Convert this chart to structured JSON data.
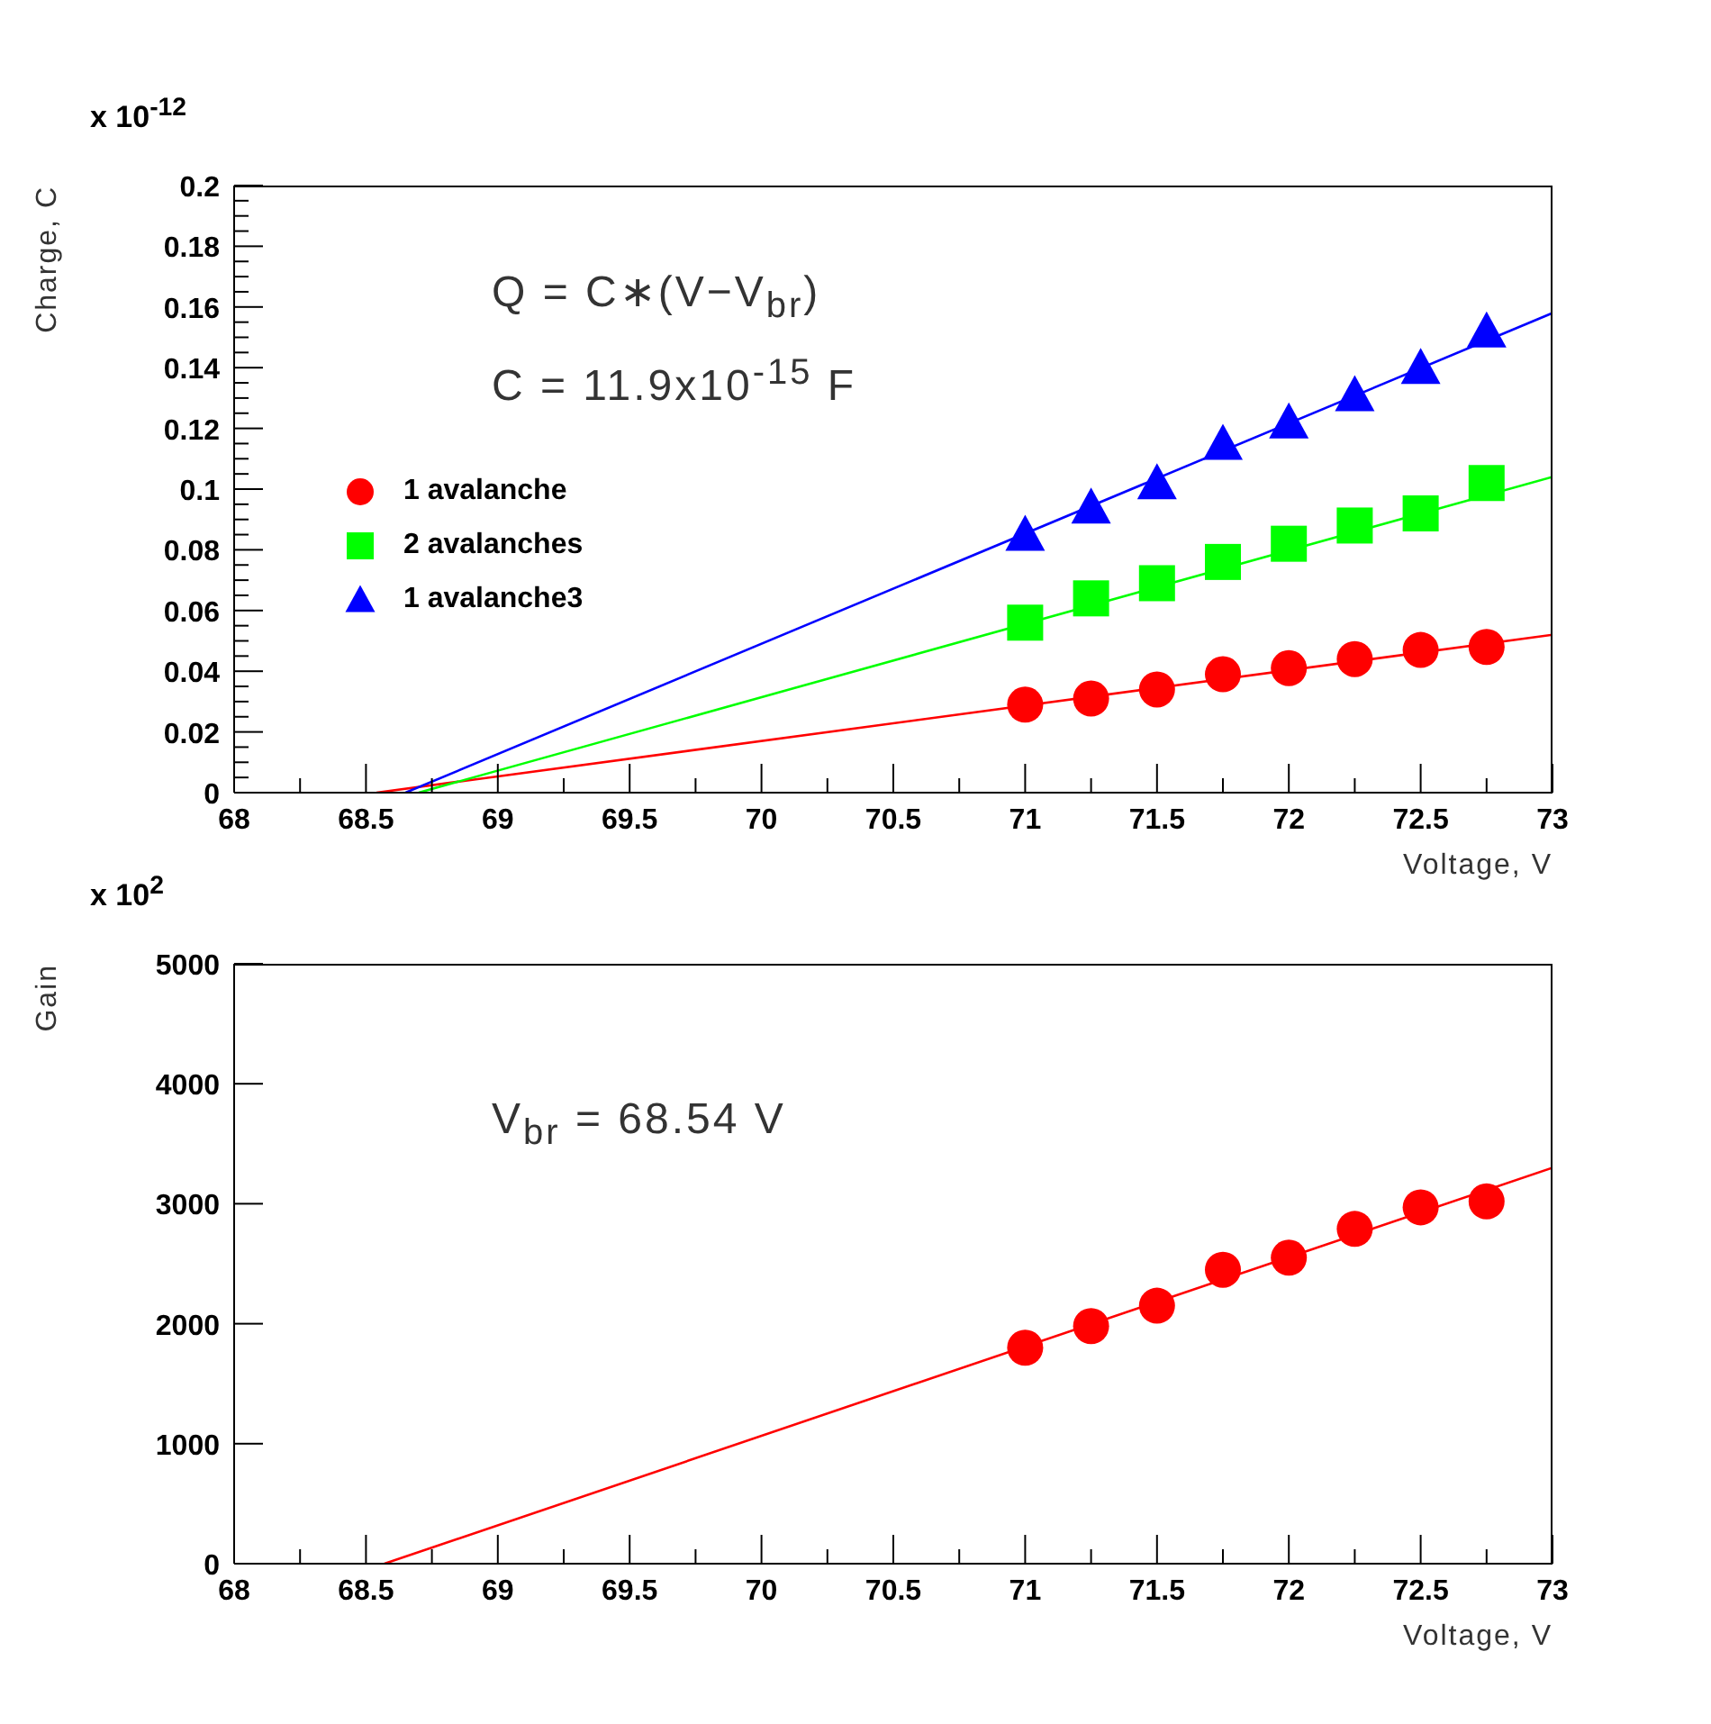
{
  "chart_data": [
    {
      "type": "scatter",
      "xlabel": "Voltage, V",
      "ylabel": "Charge, C",
      "annotations": [
        "x 10$^{-12}$",
        "Q = C∗(V−V$_{br}$)",
        "C = 11.9x10$^{-15}$ F"
      ],
      "xlim": [
        68,
        73
      ],
      "xticks": [
        68,
        {
          "value": 68.25,
          "label": null
        },
        68.5,
        {
          "value": 68.75,
          "label": null
        },
        69,
        {
          "value": 69.25,
          "label": null
        },
        69.5,
        {
          "value": 69.75,
          "label": null
        },
        70,
        {
          "value": 70.25,
          "label": null
        },
        70.5,
        {
          "value": 70.75,
          "label": null
        },
        71,
        {
          "value": 71.25,
          "label": null
        },
        71.5,
        {
          "value": 71.75,
          "label": null
        },
        72,
        {
          "value": 72.25,
          "label": null
        },
        72.5,
        {
          "value": 72.75,
          "label": null
        },
        73
      ],
      "ylim": [
        0,
        0.2
      ],
      "yticks": [
        0,
        {
          "value": 0.005,
          "label": null
        },
        {
          "value": 0.01,
          "label": null
        },
        {
          "value": 0.015,
          "label": null
        },
        0.02,
        {
          "value": 0.025,
          "label": null
        },
        {
          "value": 0.03,
          "label": null
        },
        {
          "value": 0.035,
          "label": null
        },
        0.04,
        {
          "value": 0.045,
          "label": null
        },
        {
          "value": 0.05,
          "label": null
        },
        {
          "value": 0.055,
          "label": null
        },
        0.06,
        {
          "value": 0.065,
          "label": null
        },
        {
          "value": 0.07,
          "label": null
        },
        {
          "value": 0.075,
          "label": null
        },
        0.08,
        {
          "value": 0.085,
          "label": null
        },
        {
          "value": 0.09,
          "label": null
        },
        {
          "value": 0.095,
          "label": null
        },
        0.1,
        {
          "value": 0.105,
          "label": null
        },
        {
          "value": 0.11,
          "label": null
        },
        {
          "value": 0.115,
          "label": null
        },
        0.12,
        {
          "value": 0.125,
          "label": null
        },
        {
          "value": 0.13,
          "label": null
        },
        {
          "value": 0.135,
          "label": null
        },
        0.14,
        {
          "value": 0.145,
          "label": null
        },
        {
          "value": 0.15,
          "label": null
        },
        {
          "value": 0.155,
          "label": null
        },
        0.16,
        {
          "value": 0.165,
          "label": null
        },
        {
          "value": 0.17,
          "label": null
        },
        {
          "value": 0.175,
          "label": null
        },
        0.18,
        {
          "value": 0.185,
          "label": null
        },
        {
          "value": 0.19,
          "label": null
        },
        {
          "value": 0.195,
          "label": null
        },
        0.2
      ],
      "legend": "left",
      "grid": false,
      "series": [
        {
          "name": "1 avalanche",
          "color": "#ff0000",
          "marker": "circle",
          "x": [
            71,
            71.25,
            71.5,
            71.75,
            72,
            72.25,
            72.5,
            72.75
          ],
          "values": [
            0.029,
            0.031,
            0.034,
            0.039,
            0.041,
            0.044,
            0.047,
            0.048
          ]
        },
        {
          "name": "2 avalanches",
          "color": "#00ff00",
          "marker": "square",
          "x": [
            71,
            71.25,
            71.5,
            71.75,
            72,
            72.25,
            72.5,
            72.75
          ],
          "values": [
            0.056,
            0.064,
            0.069,
            0.076,
            0.082,
            0.088,
            0.092,
            0.102
          ]
        },
        {
          "name": "1 avalanche3",
          "color": "#0000ff",
          "marker": "triangle",
          "x": [
            71,
            71.25,
            71.5,
            71.75,
            72,
            72.25,
            72.5,
            72.75
          ],
          "values": [
            0.085,
            0.094,
            0.102,
            0.115,
            0.122,
            0.131,
            0.14,
            0.152
          ]
        },
        {
          "type": "line",
          "color": "#ff0000",
          "x": [
            68.54,
            73
          ],
          "values": [
            0,
            0.052
          ]
        },
        {
          "type": "line",
          "color": "#00ff00",
          "x": [
            68.7,
            73
          ],
          "values": [
            0,
            0.104
          ]
        },
        {
          "type": "line",
          "color": "#0000ff",
          "x": [
            68.65,
            73
          ],
          "values": [
            0,
            0.158
          ]
        }
      ]
    },
    {
      "type": "scatter",
      "xlabel": "Voltage, V",
      "ylabel": "Gain",
      "annotations": [
        "x 10$^{2}$",
        "V$_{br}$ = 68.54 V"
      ],
      "xlim": [
        68,
        73
      ],
      "xticks": [
        68,
        {
          "value": 68.25,
          "label": null
        },
        68.5,
        {
          "value": 68.75,
          "label": null
        },
        69,
        {
          "value": 69.25,
          "label": null
        },
        69.5,
        {
          "value": 69.75,
          "label": null
        },
        70,
        {
          "value": 70.25,
          "label": null
        },
        70.5,
        {
          "value": 70.75,
          "label": null
        },
        71,
        {
          "value": 71.25,
          "label": null
        },
        71.5,
        {
          "value": 71.75,
          "label": null
        },
        72,
        {
          "value": 72.25,
          "label": null
        },
        72.5,
        {
          "value": 72.75,
          "label": null
        },
        73
      ],
      "ylim": [
        0,
        5000
      ],
      "yticks": [
        0,
        1000,
        2000,
        3000,
        4000,
        5000
      ],
      "grid": false,
      "series": [
        {
          "color": "#ff0000",
          "marker": "circle",
          "x": [
            71,
            71.25,
            71.5,
            71.75,
            72,
            72.25,
            72.5,
            72.75
          ],
          "values": [
            1800,
            1980,
            2150,
            2450,
            2550,
            2790,
            2970,
            3020
          ]
        },
        {
          "type": "line",
          "color": "#ff0000",
          "x": [
            68.57,
            73
          ],
          "values": [
            0,
            3300
          ]
        }
      ]
    }
  ]
}
